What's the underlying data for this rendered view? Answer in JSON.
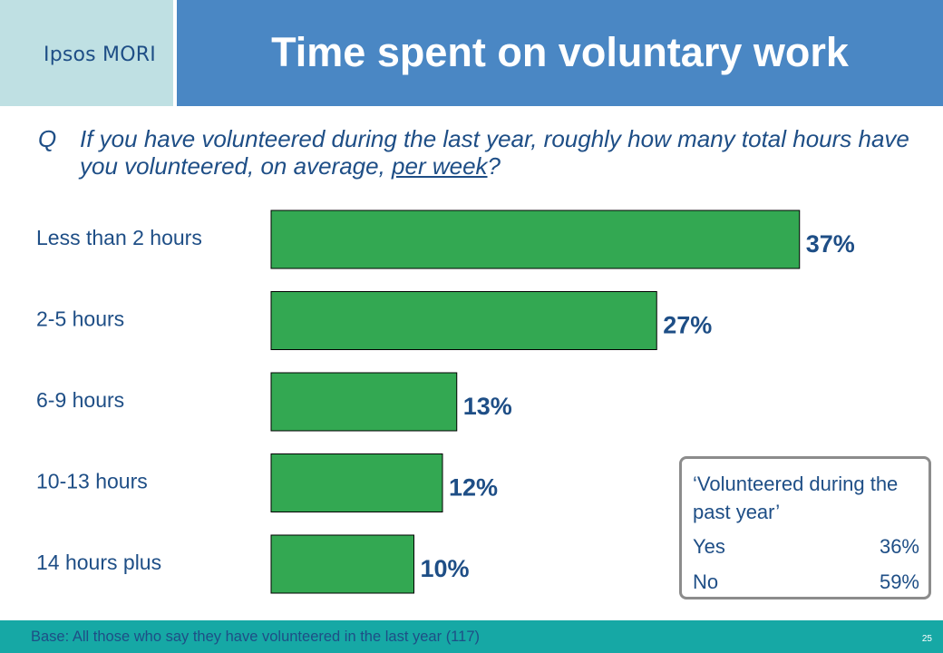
{
  "header": {
    "logo": "Ipsos MORI",
    "title": "Time spent on voluntary work"
  },
  "question": {
    "prefix": "Q",
    "text_before": "If you have volunteered during the last year, roughly how many total hours have you volunteered, on average, ",
    "text_underlined": "per week",
    "text_after": "?"
  },
  "chart_data": {
    "type": "bar",
    "orientation": "horizontal",
    "categories": [
      "Less than 2 hours",
      "2-5 hours",
      "6-9 hours",
      "10-13 hours",
      "14 hours plus"
    ],
    "values": [
      37,
      27,
      13,
      12,
      10
    ],
    "value_labels": [
      "37%",
      "27%",
      "13%",
      "12%",
      "10%"
    ],
    "bar_color": "#33a852",
    "label_color": "#1e4e86",
    "title": "",
    "xlabel": "",
    "ylabel": "",
    "grid": false
  },
  "legend_box": {
    "title": "‘Volunteered during the past year’",
    "rows": [
      {
        "label": "Yes",
        "value": "36%"
      },
      {
        "label": "No",
        "value": "59%"
      }
    ]
  },
  "footer": {
    "base": "Base: All those who say they have volunteered in the last year (117)",
    "page": "25"
  }
}
